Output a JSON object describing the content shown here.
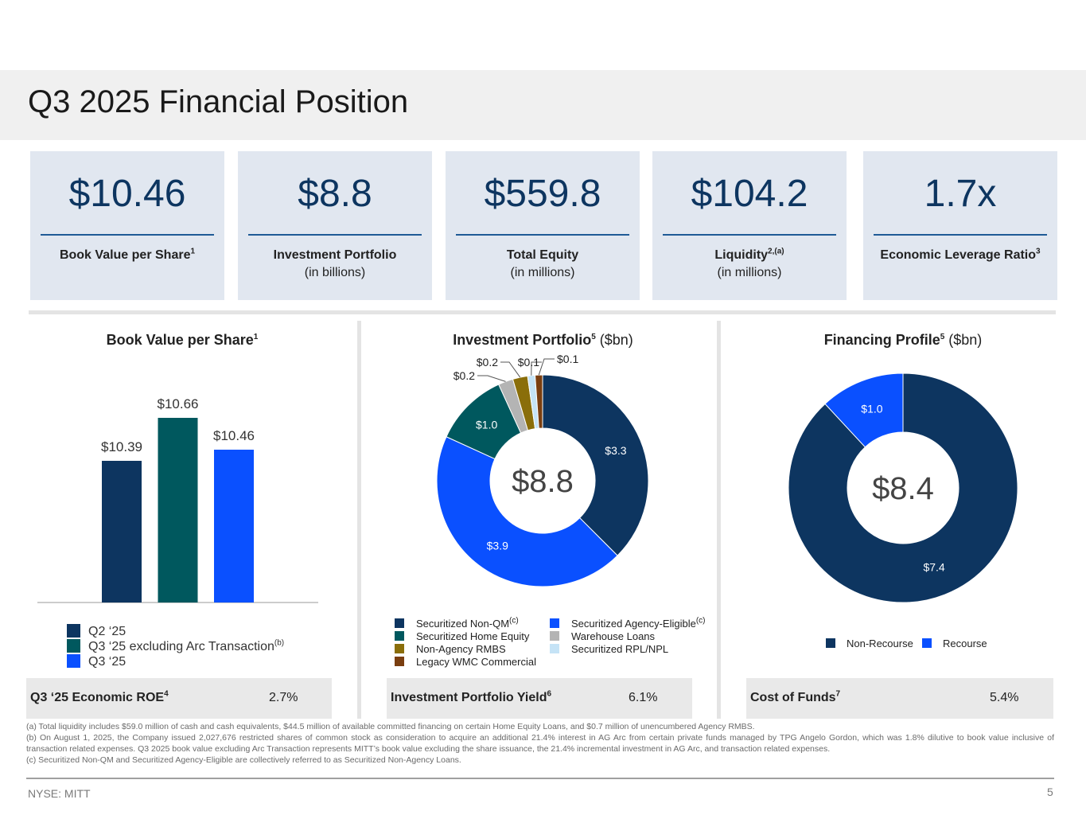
{
  "title": "Q3 2025 Financial Position",
  "colors": {
    "navy": "#0d3560",
    "teal": "#00585e",
    "blue": "#0a50ff",
    "olive": "#8a6e0a",
    "gray": "#b4b4b4",
    "lightblue": "#c5e3f6",
    "brown": "#7a3e10",
    "card_bg": "#e1e7f0"
  },
  "kpis": [
    {
      "value": "$10.46",
      "label": "Book Value per Share",
      "sup": "1",
      "sub": ""
    },
    {
      "value": "$8.8",
      "label": "Investment Portfolio",
      "sup": "",
      "sub": "(in billions)"
    },
    {
      "value": "$559.8",
      "label": "Total Equity",
      "sup": "",
      "sub": "(in millions)"
    },
    {
      "value": "$104.2",
      "label": "Liquidity",
      "sup": "2,(a)",
      "sub": "(in millions)"
    },
    {
      "value": "1.7x",
      "label": "Economic Leverage Ratio",
      "sup": "3",
      "sub": ""
    }
  ],
  "bvps": {
    "title": "Book Value per Share",
    "title_sup": "1",
    "legend": [
      {
        "label": "Q2 ‘25",
        "sup": ""
      },
      {
        "label": "Q3 ‘25 excluding Arc Transaction",
        "sup": "(b)"
      },
      {
        "label": "Q3 ‘25",
        "sup": ""
      }
    ],
    "stat_label": "Q3 ‘25 Economic ROE",
    "stat_sup": "4",
    "stat_value": "2.7%"
  },
  "portfolio": {
    "title": "Investment Portfolio",
    "title_sup": "5",
    "title_unit": " ($bn)",
    "center_label": "$8.8",
    "legend": [
      {
        "label": "Securitized Non-QM",
        "sup": "(c)"
      },
      {
        "label": "Securitized Home Equity",
        "sup": ""
      },
      {
        "label": "Non-Agency RMBS",
        "sup": ""
      },
      {
        "label": "Legacy WMC Commercial",
        "sup": ""
      },
      {
        "label": "Securitized Agency-Eligible",
        "sup": "(c)"
      },
      {
        "label": "Warehouse Loans",
        "sup": ""
      },
      {
        "label": "Securitized RPL/NPL",
        "sup": ""
      }
    ],
    "stat_label": "Investment Portfolio Yield",
    "stat_sup": "6",
    "stat_value": "6.1%"
  },
  "financing": {
    "title": "Financing Profile",
    "title_sup": "5",
    "title_unit": " ($bn)",
    "center_label": "$8.4",
    "legend": [
      "Non-Recourse",
      "Recourse"
    ],
    "stat_label": "Cost of Funds",
    "stat_sup": "7",
    "stat_value": "5.4%"
  },
  "chart_data": [
    {
      "type": "bar",
      "title": "Book Value per Share",
      "categories": [
        "Q2 ‘25",
        "Q3 ‘25 excluding Arc Transaction",
        "Q3 ‘25"
      ],
      "values": [
        10.39,
        10.66,
        10.46
      ],
      "value_labels": [
        "$10.39",
        "$10.66",
        "$10.46"
      ],
      "ylim": [
        9.5,
        10.8
      ]
    },
    {
      "type": "pie",
      "title": "Investment Portfolio ($bn)",
      "center_label": "$8.8",
      "slices": [
        {
          "name": "Securitized Non-QM",
          "value": 3.3,
          "label": "$3.3"
        },
        {
          "name": "Securitized Agency-Eligible",
          "value": 3.9,
          "label": "$3.9"
        },
        {
          "name": "Securitized Home Equity",
          "value": 1.0,
          "label": "$1.0"
        },
        {
          "name": "Warehouse Loans",
          "value": 0.2,
          "label": "$0.2"
        },
        {
          "name": "Non-Agency RMBS",
          "value": 0.2,
          "label": "$0.2"
        },
        {
          "name": "Securitized RPL/NPL",
          "value": 0.1,
          "label": "$0.1"
        },
        {
          "name": "Legacy WMC Commercial",
          "value": 0.1,
          "label": "$0.1"
        }
      ]
    },
    {
      "type": "pie",
      "title": "Financing Profile ($bn)",
      "center_label": "$8.4",
      "slices": [
        {
          "name": "Non-Recourse",
          "value": 7.4,
          "label": "$7.4"
        },
        {
          "name": "Recourse",
          "value": 1.0,
          "label": "$1.0"
        }
      ]
    }
  ],
  "footnotes": [
    "(a) Total liquidity includes $59.0 million of cash and cash equivalents, $44.5 million of available committed financing on certain Home Equity Loans, and $0.7 million of unencumbered Agency RMBS.",
    "(b) On August 1, 2025, the Company issued 2,027,676 restricted shares of common stock as consideration to acquire an additional 21.4% interest in AG Arc from certain private funds managed by TPG Angelo Gordon, which was 1.8% dilutive to book value inclusive of transaction related expenses. Q3 2025 book value excluding Arc Transaction represents MITT’s book value excluding the share issuance, the 21.4% incremental investment in AG Arc, and transaction related expenses.",
    "(c) Securitized Non-QM and Securitized Agency-Eligible are collectively referred to as Securitized Non-Agency Loans."
  ],
  "ticker": "NYSE: MITT",
  "page_number": "5"
}
